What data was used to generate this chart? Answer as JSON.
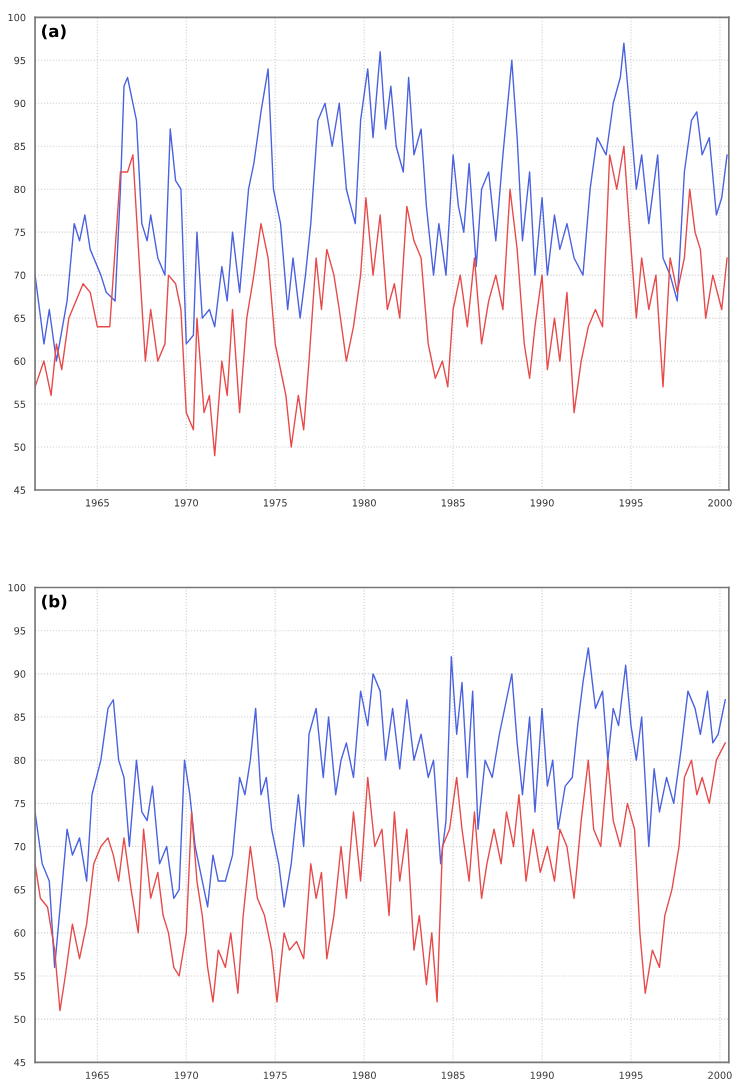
{
  "chart_data": [
    {
      "type": "line",
      "title": "(a)",
      "xlim": [
        1961.5,
        2000.5
      ],
      "ylim": [
        45,
        100
      ],
      "xticks": [
        1965,
        1970,
        1975,
        1980,
        1985,
        1990,
        1995,
        2000
      ],
      "yticks": [
        45,
        50,
        55,
        60,
        65,
        70,
        75,
        80,
        85,
        90,
        95,
        100
      ],
      "grid": true,
      "line_style": "solid",
      "series": [
        {
          "color": "#4a62e0",
          "x": [
            1961.5,
            1962,
            1962.3,
            1962.7,
            1963.3,
            1963.7,
            1964,
            1964.3,
            1964.6,
            1965.2,
            1965.5,
            1966,
            1966.3,
            1966.5,
            1966.7,
            1967,
            1967.2,
            1967.5,
            1967.8,
            1968,
            1968.4,
            1968.8,
            1969.1,
            1969.4,
            1969.7,
            1970,
            1970.4,
            1970.6,
            1970.9,
            1971.3,
            1971.6,
            1972,
            1972.3,
            1972.6,
            1973,
            1973.5,
            1973.8,
            1974.2,
            1974.6,
            1974.9,
            1975.3,
            1975.7,
            1976,
            1976.4,
            1976.7,
            1977,
            1977.4,
            1977.8,
            1978.2,
            1978.6,
            1979,
            1979.5,
            1979.8,
            1980.2,
            1980.5,
            1980.9,
            1981.2,
            1981.5,
            1981.8,
            1982.2,
            1982.5,
            1982.8,
            1983.2,
            1983.5,
            1983.9,
            1984.2,
            1984.6,
            1985,
            1985.3,
            1985.6,
            1985.9,
            1986.3,
            1986.6,
            1987,
            1987.4,
            1987.8,
            1988.3,
            1988.6,
            1988.9,
            1989.3,
            1989.6,
            1990,
            1990.3,
            1990.7,
            1991,
            1991.4,
            1991.8,
            1992.3,
            1992.7,
            1993.1,
            1993.6,
            1994,
            1994.4,
            1994.6,
            1994.9,
            1995.3,
            1995.6,
            1996,
            1996.5,
            1996.8,
            1997.2,
            1997.6,
            1998,
            1998.4,
            1998.7,
            1999,
            1999.4,
            1999.8,
            2000.1,
            2000.4
          ],
          "values": [
            70,
            62,
            66,
            60,
            67,
            76,
            74,
            77,
            73,
            70,
            68,
            67,
            80,
            92,
            93,
            90,
            88,
            76,
            74,
            77,
            72,
            70,
            87,
            81,
            80,
            62,
            63,
            75,
            65,
            66,
            64,
            71,
            67,
            75,
            68,
            80,
            83,
            89,
            94,
            80,
            76,
            66,
            72,
            65,
            70,
            76,
            88,
            90,
            85,
            90,
            80,
            76,
            88,
            94,
            86,
            96,
            87,
            92,
            85,
            82,
            93,
            84,
            87,
            78,
            70,
            76,
            70,
            84,
            78,
            75,
            83,
            71,
            80,
            82,
            74,
            84,
            95,
            86,
            74,
            82,
            70,
            79,
            70,
            77,
            73,
            76,
            72,
            70,
            80,
            86,
            84,
            90,
            93,
            97,
            90,
            80,
            84,
            76,
            84,
            72,
            70,
            67,
            82,
            88,
            89,
            84,
            86,
            77,
            79,
            84
          ]
        },
        {
          "color": "#e84a4a",
          "x": [
            1961.5,
            1962,
            1962.4,
            1962.7,
            1963,
            1963.4,
            1963.8,
            1964.2,
            1964.6,
            1965,
            1965.4,
            1965.7,
            1966.3,
            1966.7,
            1967,
            1967.4,
            1967.7,
            1968,
            1968.4,
            1968.8,
            1969,
            1969.4,
            1969.7,
            1970,
            1970.4,
            1970.6,
            1971,
            1971.3,
            1971.6,
            1972,
            1972.3,
            1972.6,
            1973,
            1973.4,
            1973.8,
            1974.2,
            1974.6,
            1975,
            1975.4,
            1975.6,
            1975.9,
            1976.3,
            1976.6,
            1976.9,
            1977.3,
            1977.6,
            1977.9,
            1978.3,
            1978.6,
            1979,
            1979.4,
            1979.8,
            1980.1,
            1980.5,
            1980.9,
            1981.3,
            1981.7,
            1982,
            1982.4,
            1982.8,
            1983.2,
            1983.6,
            1984,
            1984.4,
            1984.7,
            1985,
            1985.4,
            1985.8,
            1986.2,
            1986.6,
            1987,
            1987.4,
            1987.8,
            1988.2,
            1988.6,
            1989,
            1989.3,
            1989.6,
            1990,
            1990.3,
            1990.7,
            1991,
            1991.4,
            1991.8,
            1992.2,
            1992.6,
            1993,
            1993.4,
            1993.8,
            1994.2,
            1994.6,
            1994.9,
            1995.3,
            1995.6,
            1996,
            1996.4,
            1996.8,
            1997.2,
            1997.6,
            1998,
            1998.3,
            1998.6,
            1998.9,
            1999.2,
            1999.6,
            2000.1,
            2000.4
          ],
          "values": [
            57,
            60,
            56,
            62,
            59,
            65,
            67,
            69,
            68,
            64,
            64,
            64,
            82,
            82,
            84,
            70,
            60,
            66,
            60,
            62,
            70,
            69,
            66,
            54,
            52,
            65,
            54,
            56,
            49,
            60,
            56,
            66,
            54,
            65,
            70,
            76,
            72,
            62,
            58,
            56,
            50,
            56,
            52,
            60,
            72,
            66,
            73,
            70,
            66,
            60,
            64,
            70,
            79,
            70,
            77,
            66,
            69,
            65,
            78,
            74,
            72,
            62,
            58,
            60,
            57,
            66,
            70,
            64,
            72,
            62,
            67,
            70,
            66,
            80,
            73,
            62,
            58,
            64,
            70,
            59,
            65,
            60,
            68,
            54,
            60,
            64,
            66,
            64,
            84,
            80,
            85,
            76,
            65,
            72,
            66,
            70,
            57,
            72,
            68,
            72,
            80,
            75,
            73,
            65,
            70,
            66,
            72
          ]
        }
      ]
    },
    {
      "type": "line",
      "title": "(b)",
      "xlim": [
        1961.5,
        2000.5
      ],
      "ylim": [
        45,
        100
      ],
      "xticks": [
        1965,
        1970,
        1975,
        1980,
        1985,
        1990,
        1995,
        2000
      ],
      "yticks": [
        45,
        50,
        55,
        60,
        65,
        70,
        75,
        80,
        85,
        90,
        95,
        100
      ],
      "grid": true,
      "line_style": "solid",
      "series": [
        {
          "color": "#4a62e0",
          "x": [
            1961.5,
            1961.9,
            1962.3,
            1962.6,
            1963,
            1963.3,
            1963.6,
            1964,
            1964.4,
            1964.7,
            1965.2,
            1965.6,
            1965.9,
            1966.2,
            1966.5,
            1966.8,
            1967.2,
            1967.5,
            1967.8,
            1968.1,
            1968.5,
            1968.9,
            1969.3,
            1969.6,
            1969.9,
            1970.2,
            1970.5,
            1970.8,
            1971.2,
            1971.5,
            1971.8,
            1972.2,
            1972.6,
            1973,
            1973.3,
            1973.6,
            1973.9,
            1974.2,
            1974.5,
            1974.8,
            1975.2,
            1975.5,
            1975.9,
            1976.3,
            1976.6,
            1976.9,
            1977.3,
            1977.7,
            1978,
            1978.4,
            1978.7,
            1979,
            1979.4,
            1979.8,
            1980.2,
            1980.5,
            1980.9,
            1981.2,
            1981.6,
            1982,
            1982.4,
            1982.8,
            1983.2,
            1983.6,
            1983.9,
            1984.3,
            1984.6,
            1984.9,
            1985.2,
            1985.5,
            1985.8,
            1986.1,
            1986.4,
            1986.8,
            1987.2,
            1987.6,
            1987.9,
            1988.3,
            1988.6,
            1988.9,
            1989.3,
            1989.6,
            1990,
            1990.3,
            1990.6,
            1990.9,
            1991.3,
            1991.7,
            1992,
            1992.3,
            1992.6,
            1993,
            1993.4,
            1993.7,
            1994,
            1994.3,
            1994.7,
            1995,
            1995.3,
            1995.6,
            1996,
            1996.3,
            1996.6,
            1997,
            1997.4,
            1997.8,
            1998.2,
            1998.6,
            1998.9,
            1999.3,
            1999.6,
            1999.9,
            2000.3
          ],
          "values": [
            74,
            68,
            66,
            56,
            65,
            72,
            69,
            71,
            66,
            76,
            80,
            86,
            87,
            80,
            78,
            70,
            80,
            74,
            73,
            77,
            68,
            70,
            64,
            65,
            80,
            76,
            70,
            67,
            63,
            69,
            66,
            66,
            69,
            78,
            76,
            80,
            86,
            76,
            78,
            72,
            68,
            63,
            68,
            76,
            70,
            83,
            86,
            78,
            85,
            76,
            80,
            82,
            78,
            88,
            84,
            90,
            88,
            80,
            86,
            79,
            87,
            80,
            83,
            78,
            80,
            68,
            73,
            92,
            83,
            89,
            78,
            88,
            72,
            80,
            78,
            83,
            86,
            90,
            82,
            76,
            85,
            74,
            86,
            77,
            80,
            72,
            77,
            78,
            84,
            89,
            93,
            86,
            88,
            80,
            86,
            84,
            91,
            84,
            80,
            85,
            70,
            79,
            74,
            78,
            75,
            81,
            88,
            86,
            83,
            88,
            82,
            83,
            87
          ]
        },
        {
          "color": "#e84a4a",
          "x": [
            1961.5,
            1961.8,
            1962.2,
            1962.6,
            1962.9,
            1963.2,
            1963.6,
            1964,
            1964.4,
            1964.8,
            1965.2,
            1965.6,
            1965.9,
            1966.2,
            1966.5,
            1966.9,
            1967.3,
            1967.6,
            1968,
            1968.4,
            1968.7,
            1969,
            1969.3,
            1969.6,
            1970,
            1970.3,
            1970.6,
            1970.9,
            1971.2,
            1971.5,
            1971.8,
            1972.2,
            1972.5,
            1972.9,
            1973.2,
            1973.6,
            1974,
            1974.4,
            1974.8,
            1975.1,
            1975.5,
            1975.8,
            1976.2,
            1976.6,
            1977,
            1977.3,
            1977.6,
            1977.9,
            1978.3,
            1978.7,
            1979,
            1979.4,
            1979.8,
            1980.2,
            1980.6,
            1981,
            1981.4,
            1981.7,
            1982,
            1982.4,
            1982.8,
            1983.1,
            1983.5,
            1983.8,
            1984.1,
            1984.4,
            1984.8,
            1985.2,
            1985.5,
            1985.9,
            1986.2,
            1986.6,
            1986.9,
            1987.3,
            1987.7,
            1988,
            1988.4,
            1988.7,
            1989.1,
            1989.5,
            1989.9,
            1990.3,
            1990.7,
            1991,
            1991.4,
            1991.8,
            1992.2,
            1992.6,
            1992.9,
            1993.3,
            1993.7,
            1994,
            1994.4,
            1994.8,
            1995.2,
            1995.5,
            1995.8,
            1996.2,
            1996.6,
            1996.9,
            1997.3,
            1997.7,
            1998,
            1998.4,
            1998.7,
            1999,
            1999.4,
            1999.8,
            2000.3
          ],
          "values": [
            68,
            64,
            63,
            58,
            51,
            55,
            61,
            57,
            61,
            68,
            70,
            71,
            69,
            66,
            71,
            65,
            60,
            72,
            64,
            67,
            62,
            60,
            56,
            55,
            60,
            74,
            66,
            62,
            56,
            52,
            58,
            56,
            60,
            53,
            62,
            70,
            64,
            62,
            58,
            52,
            60,
            58,
            59,
            57,
            68,
            64,
            67,
            57,
            62,
            70,
            64,
            74,
            66,
            78,
            70,
            72,
            62,
            74,
            66,
            72,
            58,
            62,
            54,
            60,
            52,
            70,
            72,
            78,
            72,
            66,
            74,
            64,
            68,
            72,
            68,
            74,
            70,
            76,
            66,
            72,
            67,
            70,
            66,
            72,
            70,
            64,
            73,
            80,
            72,
            70,
            80,
            73,
            70,
            75,
            72,
            60,
            53,
            58,
            56,
            62,
            65,
            70,
            78,
            80,
            76,
            78,
            75,
            80,
            82
          ]
        }
      ]
    }
  ]
}
